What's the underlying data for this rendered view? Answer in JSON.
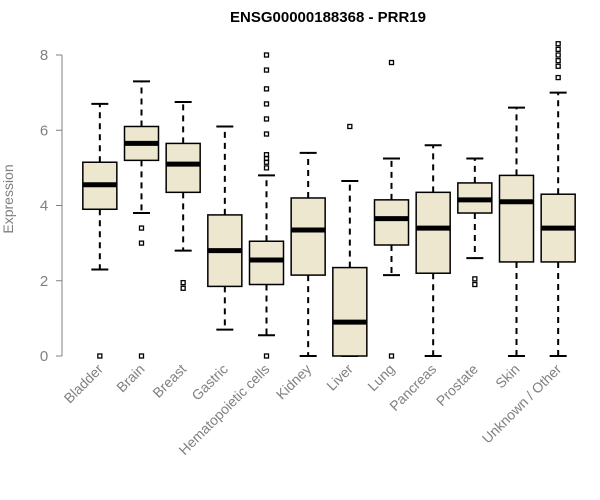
{
  "chart_data": {
    "type": "boxplot",
    "title": "ENSG00000188368 - PRR19",
    "xlabel": "",
    "ylabel": "Expression",
    "ylim": [
      0,
      8
    ],
    "yticks": [
      0,
      2,
      4,
      6,
      8
    ],
    "grid": false,
    "colors": {
      "box_fill": "#ede7cf",
      "box_stroke": "#000000",
      "axis": "#808080"
    },
    "categories": [
      "Bladder",
      "Brain",
      "Breast",
      "Gastric",
      "Hematopoietic cells",
      "Kidney",
      "Liver",
      "Lung",
      "Pancreas",
      "Prostate",
      "Skin",
      "Unknown / Other"
    ],
    "series": [
      {
        "name": "Bladder",
        "whisker_low": 2.3,
        "q1": 3.9,
        "median": 4.55,
        "q3": 5.15,
        "whisker_high": 6.7,
        "outliers": [
          0
        ]
      },
      {
        "name": "Brain",
        "whisker_low": 3.8,
        "q1": 5.2,
        "median": 5.65,
        "q3": 6.1,
        "whisker_high": 7.3,
        "outliers": [
          3.4,
          3.0,
          0
        ]
      },
      {
        "name": "Breast",
        "whisker_low": 2.8,
        "q1": 4.35,
        "median": 5.1,
        "q3": 5.65,
        "whisker_high": 6.75,
        "outliers": [
          1.95,
          1.8
        ]
      },
      {
        "name": "Gastric",
        "whisker_low": 0.7,
        "q1": 1.85,
        "median": 2.8,
        "q3": 3.75,
        "whisker_high": 6.1,
        "outliers": []
      },
      {
        "name": "Hematopoietic cells",
        "whisker_low": 0.55,
        "q1": 1.9,
        "median": 2.55,
        "q3": 3.05,
        "whisker_high": 4.8,
        "outliers": [
          0,
          5.0,
          5.15,
          5.25,
          5.35,
          5.9,
          6.3,
          6.7,
          7.1,
          7.6,
          8.0
        ]
      },
      {
        "name": "Kidney",
        "whisker_low": 0,
        "q1": 2.15,
        "median": 3.35,
        "q3": 4.2,
        "whisker_high": 5.4,
        "outliers": []
      },
      {
        "name": "Liver",
        "whisker_low": 0,
        "q1": 0,
        "median": 0.9,
        "q3": 2.35,
        "whisker_high": 4.65,
        "outliers": [
          6.1
        ]
      },
      {
        "name": "Lung",
        "whisker_low": 2.15,
        "q1": 2.95,
        "median": 3.65,
        "q3": 4.15,
        "whisker_high": 5.25,
        "outliers": [
          7.8,
          0
        ]
      },
      {
        "name": "Pancreas",
        "whisker_low": 0,
        "q1": 2.2,
        "median": 3.4,
        "q3": 4.35,
        "whisker_high": 5.6,
        "outliers": []
      },
      {
        "name": "Prostate",
        "whisker_low": 2.6,
        "q1": 3.8,
        "median": 4.15,
        "q3": 4.6,
        "whisker_high": 5.25,
        "outliers": [
          2.05,
          1.9
        ]
      },
      {
        "name": "Skin",
        "whisker_low": 0,
        "q1": 2.5,
        "median": 4.1,
        "q3": 4.8,
        "whisker_high": 6.6,
        "outliers": []
      },
      {
        "name": "Unknown / Other",
        "whisker_low": 0,
        "q1": 2.5,
        "median": 3.4,
        "q3": 4.3,
        "whisker_high": 7.0,
        "outliers": [
          7.4,
          7.7,
          7.85,
          8.0,
          8.15,
          8.3
        ]
      }
    ]
  }
}
